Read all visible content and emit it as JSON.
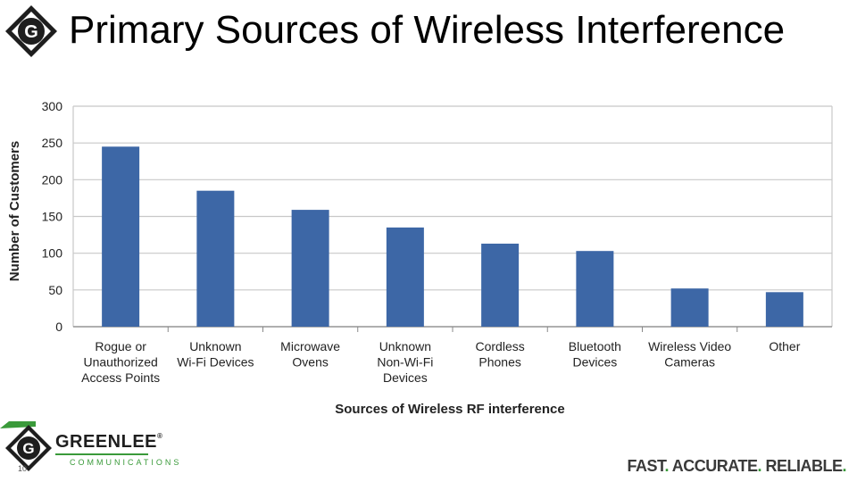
{
  "slide": {
    "title": "Primary Sources of Wireless Interference",
    "page_number": "10"
  },
  "brand": {
    "name": "GREENLEE",
    "registered": "®",
    "sub": "COMMUNICATIONS",
    "logo_letter": "G",
    "tagline_parts": [
      "FAST",
      ". ",
      "ACCURATE",
      ". ",
      "RELIABLE",
      "."
    ],
    "green": "#3a9a3a",
    "dark": "#1e1e1e"
  },
  "chart_data": {
    "type": "bar",
    "title": "",
    "xlabel": "Sources of Wireless RF interference",
    "ylabel": "Number of Customers",
    "ylim": [
      0,
      300
    ],
    "yticks": [
      0,
      50,
      100,
      150,
      200,
      250,
      300
    ],
    "grid": true,
    "bar_color": "#3d67a6",
    "categories": [
      [
        "Rogue or",
        "Unauthorized",
        "Access Points"
      ],
      [
        "Unknown",
        "Wi-Fi Devices"
      ],
      [
        "Microwave",
        "Ovens"
      ],
      [
        "Unknown",
        "Non-Wi-Fi",
        "Devices"
      ],
      [
        "Cordless",
        "Phones"
      ],
      [
        "Bluetooth",
        "Devices"
      ],
      [
        "Wireless Video",
        "Cameras"
      ],
      [
        "Other"
      ]
    ],
    "values": [
      245,
      185,
      159,
      135,
      113,
      103,
      52,
      47
    ]
  }
}
